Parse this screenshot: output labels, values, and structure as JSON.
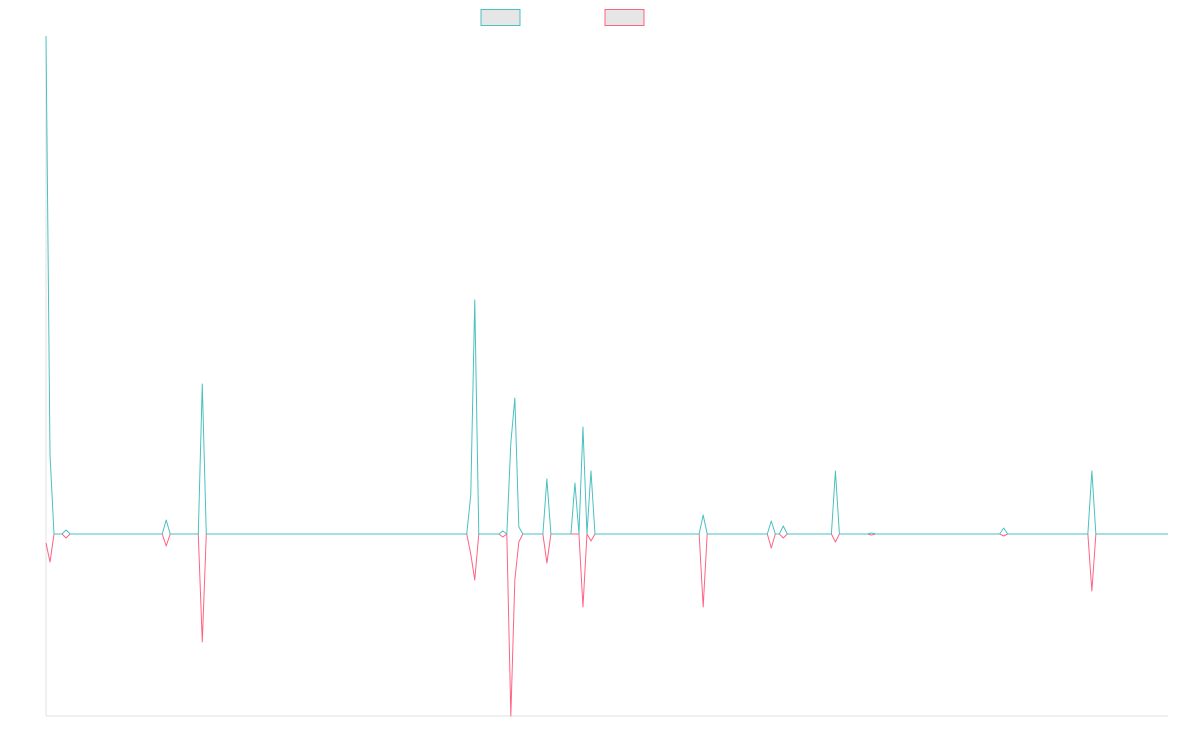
{
  "chart_data": {
    "type": "line",
    "x": [
      0,
      1,
      2,
      4,
      5,
      6,
      29,
      30,
      31,
      38,
      39,
      40,
      105,
      106,
      107,
      108,
      113,
      114,
      115,
      116,
      117,
      118,
      119,
      124,
      125,
      126,
      131,
      132,
      133,
      134,
      135,
      136,
      137,
      163,
      164,
      165,
      180,
      181,
      182,
      183,
      184,
      185,
      196,
      197,
      198,
      205,
      206,
      207,
      238,
      239,
      240,
      260,
      261,
      262,
      280
    ],
    "xlim": [
      0,
      280
    ],
    "ylim": [
      -182,
      498
    ],
    "series": [
      {
        "color": "#4bc0c0",
        "fill": "#e6e6e6",
        "values": [
          498,
          79,
          0,
          0,
          4,
          0,
          0,
          14,
          0,
          0,
          150,
          0,
          0,
          39,
          234,
          0,
          0,
          3,
          0,
          91,
          136,
          7,
          0,
          0,
          55,
          0,
          0,
          51,
          0,
          107,
          0,
          63,
          0,
          0,
          19,
          0,
          0,
          13,
          0,
          0,
          8,
          0,
          0,
          63,
          0,
          0,
          1,
          0,
          0,
          6,
          0,
          0,
          63,
          0,
          0
        ]
      },
      {
        "color": "#ff6384",
        "fill": "#e6e6e6",
        "values": [
          -9,
          -28,
          0,
          0,
          -4,
          0,
          0,
          -12,
          0,
          0,
          -108,
          0,
          0,
          -20,
          -46,
          0,
          0,
          -3,
          0,
          -182,
          -46,
          -8,
          0,
          0,
          -29,
          0,
          0,
          0,
          0,
          -73,
          0,
          -7,
          0,
          0,
          -73,
          0,
          0,
          -14,
          0,
          0,
          -4,
          0,
          0,
          -8,
          0,
          0,
          -1,
          0,
          0,
          -2,
          0,
          0,
          -57,
          0,
          0
        ]
      }
    ]
  }
}
